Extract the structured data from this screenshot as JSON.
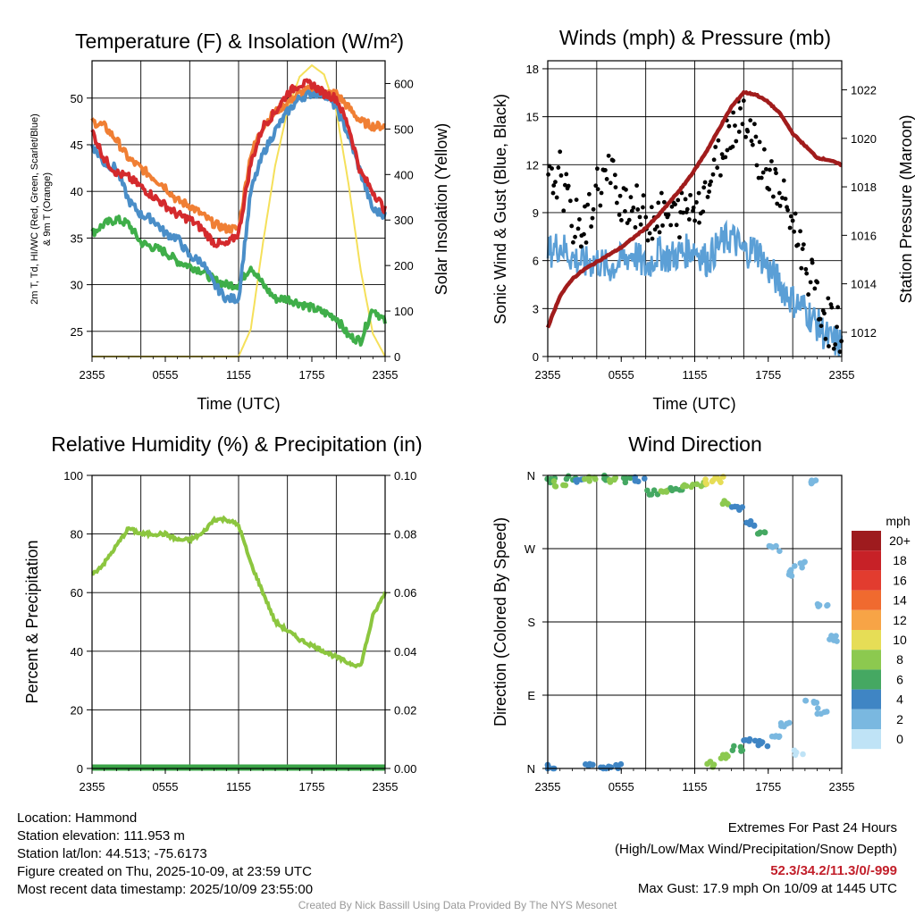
{
  "x_ticks": [
    "2355",
    "0555",
    "1155",
    "1755",
    "2355"
  ],
  "panels": {
    "temperature": {
      "title": "Temperature (F) & Insolation (W/m²)",
      "ylabel_left_line1": "2m T, Td, HI/WC (Red, Green, Scarlet/Blue)",
      "ylabel_left_line2": "& 9m T (Orange)",
      "ylabel_right": "Solar Insolation (Yellow)",
      "xlabel": "Time (UTC)"
    },
    "winds": {
      "title": "Winds (mph) & Pressure (mb)",
      "ylabel_left": "Sonic Wind & Gust (Blue, Black)",
      "ylabel_right": "Station Pressure (Maroon)",
      "xlabel": "Time (UTC)"
    },
    "humidity": {
      "title": "Relative Humidity (%) & Precipitation (in)",
      "ylabel_left": "Percent & Precipitation"
    },
    "direction": {
      "title": "Wind Direction",
      "ylabel_left": "Direction (Colored By Speed)",
      "legend_unit": "mph",
      "legend_labels": [
        "20+",
        "18",
        "16",
        "14",
        "12",
        "10",
        "8",
        "6",
        "4",
        "2",
        "0"
      ],
      "legend_colors": [
        "#9e1b1e",
        "#c72127",
        "#e23c2f",
        "#f06a2f",
        "#f7a446",
        "#e6dd56",
        "#8cc94f",
        "#45a862",
        "#3f85c4",
        "#7ab8e0",
        "#bfe3f6"
      ]
    }
  },
  "footer": {
    "location": "Location: Hammond",
    "elevation": "Station elevation: 111.953 m",
    "latlon": "Station lat/lon: 44.513; -75.6173",
    "created": "Figure created on Thu, 2025-10-09, at 23:59 UTC",
    "recent": "Most recent data timestamp: 2025/10/09 23:55:00",
    "extremes_title": "Extremes For Past 24 Hours",
    "extremes_sub": "(High/Low/Max Wind/Precipitation/Snow Depth)",
    "extremes_values": "52.3/34.2/11.3/0/-999",
    "max_gust": "Max Gust: 17.9 mph On 10/09 at 1445 UTC",
    "credit": "Created By Nick Bassill Using Data Provided By The NYS Mesonet"
  },
  "colors": {
    "temp": "#d42a2d",
    "temp9m": "#f07f34",
    "dewpoint": "#3fae49",
    "windchill": "#4a8ec8",
    "insolation": "#f5e05a",
    "wind": "#5b9fd6",
    "gust": "#000000",
    "pressure": "#a11c1c",
    "humidity": "#8cc63f",
    "precip": "#3aa447"
  },
  "chart_data": [
    {
      "type": "line",
      "title": "Temperature (F) & Insolation (W/m²)",
      "xlabel": "Time (UTC)",
      "x": [
        0,
        1,
        2,
        3,
        4,
        5,
        6,
        7,
        8,
        9,
        10,
        11,
        12,
        13,
        14,
        15,
        16,
        17,
        18,
        19,
        20,
        21,
        22,
        23,
        24
      ],
      "ylim": [
        22.3,
        54
      ],
      "y2lim": [
        0,
        650
      ],
      "y_ticks": [
        25,
        30,
        35,
        40,
        45,
        50
      ],
      "y2_ticks": [
        0,
        100,
        200,
        300,
        400,
        500,
        600
      ],
      "series": [
        {
          "name": "2m T (Red)",
          "axis": "left",
          "values": [
            46.5,
            43.5,
            42.0,
            41.5,
            40.5,
            39.5,
            38.5,
            37.5,
            37.0,
            36.0,
            34.5,
            34.2,
            35.5,
            43.0,
            47.0,
            48.5,
            50.5,
            51.5,
            51.5,
            50.5,
            50.0,
            47.0,
            42.0,
            40.0,
            38.0
          ]
        },
        {
          "name": "9m T (Orange)",
          "axis": "left",
          "values": [
            47.5,
            47.0,
            45.5,
            43.5,
            42.5,
            41.5,
            40.5,
            39.0,
            38.5,
            37.5,
            36.5,
            36.0,
            36.0,
            44.0,
            47.0,
            48.5,
            49.5,
            50.5,
            51.0,
            50.5,
            50.5,
            49.0,
            47.5,
            47.0,
            47.0
          ]
        },
        {
          "name": "Td (Green)",
          "axis": "left",
          "values": [
            35.5,
            36.5,
            37.0,
            36.5,
            34.5,
            34.0,
            33.5,
            32.5,
            32.0,
            31.5,
            30.5,
            30.0,
            30.0,
            32.0,
            30.0,
            28.5,
            28.5,
            28.0,
            27.5,
            27.0,
            26.5,
            24.5,
            24.0,
            27.5,
            26.0
          ]
        },
        {
          "name": "HI/WC (Scarlet/Blue)",
          "axis": "left",
          "values": [
            45.0,
            43.0,
            42.5,
            39.0,
            37.5,
            37.0,
            35.5,
            35.0,
            33.0,
            32.5,
            30.0,
            28.5,
            28.5,
            40.0,
            44.0,
            46.5,
            48.5,
            50.0,
            50.5,
            50.5,
            49.0,
            46.0,
            42.0,
            38.0,
            37.5
          ]
        },
        {
          "name": "Solar Insolation (Yellow)",
          "axis": "right",
          "values": [
            0,
            0,
            0,
            0,
            0,
            0,
            0,
            0,
            0,
            0,
            0,
            0,
            0,
            60,
            250,
            420,
            540,
            615,
            640,
            620,
            540,
            380,
            190,
            50,
            0
          ]
        }
      ]
    },
    {
      "type": "line",
      "title": "Winds (mph) & Pressure (mb)",
      "xlabel": "Time (UTC)",
      "x": [
        0,
        1,
        2,
        3,
        4,
        5,
        6,
        7,
        8,
        9,
        10,
        11,
        12,
        13,
        14,
        15,
        16,
        17,
        18,
        19,
        20,
        21,
        22,
        23,
        24
      ],
      "ylim": [
        0,
        18.5
      ],
      "y2lim": [
        1011,
        1023.2
      ],
      "y_ticks": [
        0,
        3,
        6,
        9,
        12,
        15,
        18
      ],
      "y2_ticks": [
        1012,
        1014,
        1016,
        1018,
        1020,
        1022
      ],
      "series": [
        {
          "name": "Sonic Wind (Blue)",
          "axis": "left",
          "values": [
            6.5,
            7.0,
            6.2,
            5.8,
            6.0,
            5.5,
            6.0,
            6.5,
            5.5,
            6.5,
            6.2,
            6.5,
            6.8,
            6.0,
            7.0,
            7.5,
            6.5,
            6.8,
            5.5,
            4.5,
            3.5,
            3.0,
            2.0,
            1.0,
            0.8
          ]
        },
        {
          "name": "Gust (Black)",
          "axis": "left",
          "values": [
            10.5,
            11.5,
            8.5,
            8.0,
            10.5,
            11.5,
            10.0,
            9.5,
            8.5,
            9.0,
            8.5,
            9.0,
            9.5,
            10.5,
            12.5,
            14.5,
            15.5,
            13.0,
            11.5,
            10.0,
            8.5,
            6.0,
            3.5,
            2.0,
            1.5
          ]
        },
        {
          "name": "Station Pressure (Maroon)",
          "axis": "right",
          "values": [
            1012.2,
            1013.5,
            1014.2,
            1014.6,
            1014.9,
            1015.2,
            1015.5,
            1015.9,
            1016.3,
            1016.8,
            1017.4,
            1018.0,
            1018.7,
            1019.5,
            1020.4,
            1021.3,
            1021.9,
            1021.8,
            1021.5,
            1021.0,
            1020.2,
            1019.7,
            1019.2,
            1019.1,
            1018.9
          ]
        }
      ]
    },
    {
      "type": "line",
      "title": "Relative Humidity (%) & Precipitation (in)",
      "x": [
        0,
        1,
        2,
        3,
        4,
        5,
        6,
        7,
        8,
        9,
        10,
        11,
        12,
        13,
        14,
        15,
        16,
        17,
        18,
        19,
        20,
        21,
        22,
        23,
        24
      ],
      "ylim": [
        0,
        100
      ],
      "y2lim": [
        0,
        0.1
      ],
      "y_ticks": [
        0,
        20,
        40,
        60,
        80,
        100
      ],
      "y2_ticks": [
        "0.00",
        "0.02",
        "0.04",
        "0.06",
        "0.08",
        "0.10"
      ],
      "series": [
        {
          "name": "Relative Humidity",
          "axis": "left",
          "values": [
            66,
            70,
            76,
            82,
            80,
            80,
            80,
            78,
            78,
            80,
            85,
            85,
            83,
            70,
            60,
            50,
            47,
            44,
            42,
            40,
            38,
            36,
            35,
            52,
            60
          ]
        },
        {
          "name": "Precipitation",
          "axis": "right",
          "values": [
            0,
            0,
            0,
            0,
            0,
            0,
            0,
            0,
            0,
            0,
            0,
            0,
            0,
            0,
            0,
            0,
            0,
            0,
            0,
            0,
            0,
            0,
            0,
            0,
            0
          ]
        }
      ]
    },
    {
      "type": "scatter",
      "title": "Wind Direction",
      "ylabel": "Direction (Colored By Speed)",
      "y_categories": [
        "N",
        "E",
        "S",
        "W",
        "N"
      ],
      "points": [
        {
          "t": 0.4,
          "dir": 355,
          "spd": 6
        },
        {
          "t": 1.0,
          "dir": 350,
          "spd": 7
        },
        {
          "t": 2.0,
          "dir": 356,
          "spd": 6
        },
        {
          "t": 2.5,
          "dir": 352,
          "spd": 4
        },
        {
          "t": 3.5,
          "dir": 355,
          "spd": 7
        },
        {
          "t": 4.5,
          "dir": 357,
          "spd": 6
        },
        {
          "t": 5.5,
          "dir": 353,
          "spd": 8
        },
        {
          "t": 6.5,
          "dir": 355,
          "spd": 5
        },
        {
          "t": 7.5,
          "dir": 356,
          "spd": 4
        },
        {
          "t": 8.5,
          "dir": 340,
          "spd": 6
        },
        {
          "t": 9.5,
          "dir": 342,
          "spd": 7
        },
        {
          "t": 10.5,
          "dir": 344,
          "spd": 6
        },
        {
          "t": 11.5,
          "dir": 346,
          "spd": 7
        },
        {
          "t": 12.5,
          "dir": 350,
          "spd": 8
        },
        {
          "t": 13.2,
          "dir": 352,
          "spd": 9
        },
        {
          "t": 14.0,
          "dir": 355,
          "spd": 10
        },
        {
          "t": 14.5,
          "dir": 325,
          "spd": 8
        },
        {
          "t": 15.5,
          "dir": 320,
          "spd": 4
        },
        {
          "t": 16.5,
          "dir": 300,
          "spd": 3
        },
        {
          "t": 17.5,
          "dir": 290,
          "spd": 5
        },
        {
          "t": 18.5,
          "dir": 270,
          "spd": 2
        },
        {
          "t": 19.5,
          "dir": 240,
          "spd": 1
        },
        {
          "t": 20.5,
          "dir": 250,
          "spd": 2
        },
        {
          "t": 21.5,
          "dir": 350,
          "spd": 1
        },
        {
          "t": 22.5,
          "dir": 200,
          "spd": 1
        },
        {
          "t": 23.5,
          "dir": 160,
          "spd": 1
        },
        {
          "t": 0.2,
          "dir": 2,
          "spd": 4
        },
        {
          "t": 3.5,
          "dir": 3,
          "spd": 4
        },
        {
          "t": 4.5,
          "dir": 1,
          "spd": 4
        },
        {
          "t": 5.5,
          "dir": 2,
          "spd": 3
        },
        {
          "t": 13.5,
          "dir": 5,
          "spd": 7
        },
        {
          "t": 14.5,
          "dir": 15,
          "spd": 8
        },
        {
          "t": 15.5,
          "dir": 25,
          "spd": 5
        },
        {
          "t": 16.5,
          "dir": 35,
          "spd": 4
        },
        {
          "t": 17.5,
          "dir": 30,
          "spd": 3
        },
        {
          "t": 18.5,
          "dir": 40,
          "spd": 2
        },
        {
          "t": 19.5,
          "dir": 55,
          "spd": 1
        },
        {
          "t": 20.5,
          "dir": 20,
          "spd": 0
        },
        {
          "t": 21.5,
          "dir": 80,
          "spd": 1
        },
        {
          "t": 22.5,
          "dir": 70,
          "spd": 1
        }
      ]
    }
  ]
}
